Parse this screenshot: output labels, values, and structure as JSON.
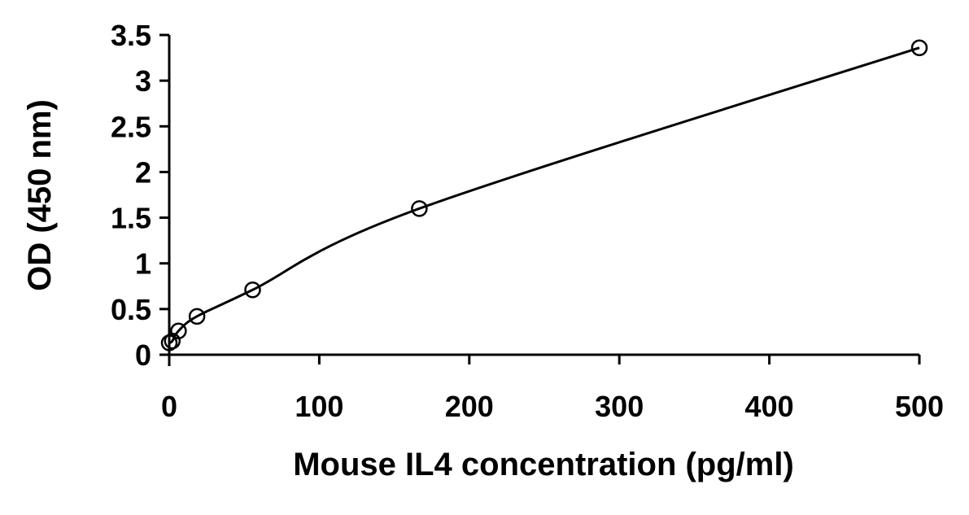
{
  "chart_data": {
    "type": "scatter",
    "title": "",
    "xlabel": "Mouse IL4 concentration (pg/ml)",
    "ylabel": "OD (450 nm)",
    "xlim": [
      0,
      500
    ],
    "ylim": [
      0,
      3.5
    ],
    "xticks": [
      "0",
      "100",
      "200",
      "300",
      "400",
      "500"
    ],
    "yticks": [
      "0",
      "0.5",
      "1",
      "1.5",
      "2",
      "2.5",
      "3",
      "3.5"
    ],
    "grid": false,
    "marker": "open-circle",
    "fit_line": "smooth curve",
    "points": [
      {
        "x": 0,
        "y": 0.13
      },
      {
        "x": 2.06,
        "y": 0.15
      },
      {
        "x": 6.17,
        "y": 0.26
      },
      {
        "x": 18.5,
        "y": 0.42
      },
      {
        "x": 55.6,
        "y": 0.71
      },
      {
        "x": 166.7,
        "y": 1.6
      },
      {
        "x": 500,
        "y": 3.36
      }
    ],
    "colors": {
      "line": "#000000",
      "marker": "#000000"
    }
  }
}
